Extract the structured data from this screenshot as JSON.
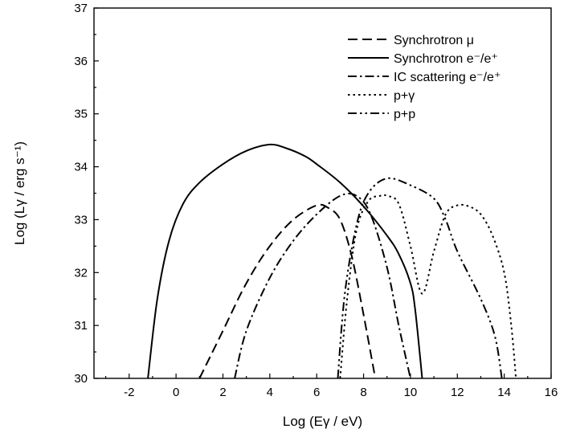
{
  "chart_data": {
    "type": "line",
    "title": "",
    "xlabel": "Log (Eγ / eV)",
    "ylabel": "Log (Lγ / erg s⁻¹)",
    "xlim": [
      -3.5,
      16
    ],
    "ylim": [
      30,
      37
    ],
    "x_ticks": [
      -2,
      0,
      2,
      4,
      6,
      8,
      10,
      12,
      14,
      16
    ],
    "x_tick_labels": [
      "-2",
      "0",
      "2",
      "4",
      "6",
      "8",
      "10",
      "12",
      "14",
      "16"
    ],
    "y_ticks": [
      30,
      31,
      32,
      33,
      34,
      35,
      36,
      37
    ],
    "y_tick_labels": [
      "30",
      "31",
      "32",
      "33",
      "34",
      "35",
      "36",
      "37"
    ],
    "grid": false,
    "legend_position": "top-right",
    "series": [
      {
        "name": "Synchrotron μ",
        "dash": "dashed",
        "points": [
          [
            1.0,
            30.0
          ],
          [
            2.0,
            30.9
          ],
          [
            3.0,
            31.8
          ],
          [
            4.0,
            32.5
          ],
          [
            5.0,
            33.0
          ],
          [
            6.0,
            33.27
          ],
          [
            6.5,
            33.22
          ],
          [
            7.0,
            33.0
          ],
          [
            7.5,
            32.3
          ],
          [
            8.0,
            31.2
          ],
          [
            8.5,
            30.0
          ]
        ]
      },
      {
        "name": "Synchrotron e⁻/e⁺",
        "dash": "solid",
        "points": [
          [
            -1.2,
            30.0
          ],
          [
            -0.8,
            31.5
          ],
          [
            -0.3,
            32.6
          ],
          [
            0.3,
            33.3
          ],
          [
            1.0,
            33.7
          ],
          [
            2.0,
            34.05
          ],
          [
            3.0,
            34.3
          ],
          [
            4.0,
            34.42
          ],
          [
            4.7,
            34.35
          ],
          [
            5.5,
            34.2
          ],
          [
            6.0,
            34.05
          ],
          [
            7.0,
            33.7
          ],
          [
            8.0,
            33.25
          ],
          [
            9.0,
            32.7
          ],
          [
            9.5,
            32.35
          ],
          [
            10.0,
            31.8
          ],
          [
            10.2,
            31.3
          ],
          [
            10.5,
            30.0
          ]
        ]
      },
      {
        "name": "IC scattering e⁻/e⁺",
        "dash": "dashdot",
        "points": [
          [
            2.5,
            30.0
          ],
          [
            3.0,
            30.9
          ],
          [
            4.0,
            31.9
          ],
          [
            5.0,
            32.6
          ],
          [
            6.0,
            33.1
          ],
          [
            7.0,
            33.45
          ],
          [
            7.7,
            33.45
          ],
          [
            8.3,
            33.1
          ],
          [
            9.0,
            32.1
          ],
          [
            9.5,
            31.0
          ],
          [
            10.0,
            30.0
          ]
        ]
      },
      {
        "name": "p+γ",
        "dash": "dotted",
        "points": [
          [
            7.0,
            30.0
          ],
          [
            7.3,
            31.5
          ],
          [
            7.7,
            32.8
          ],
          [
            8.2,
            33.35
          ],
          [
            8.7,
            33.45
          ],
          [
            9.0,
            33.45
          ],
          [
            9.5,
            33.3
          ],
          [
            10.0,
            32.5
          ],
          [
            10.5,
            31.6
          ],
          [
            11.0,
            32.4
          ],
          [
            11.5,
            33.1
          ],
          [
            12.0,
            33.27
          ],
          [
            12.5,
            33.25
          ],
          [
            13.0,
            33.1
          ],
          [
            13.5,
            32.7
          ],
          [
            14.0,
            32.0
          ],
          [
            14.3,
            31.0
          ],
          [
            14.5,
            30.0
          ]
        ]
      },
      {
        "name": "p+p",
        "dash": "dashdotdot",
        "points": [
          [
            6.9,
            30.0
          ],
          [
            7.2,
            31.6
          ],
          [
            7.7,
            32.9
          ],
          [
            8.2,
            33.5
          ],
          [
            9.0,
            33.78
          ],
          [
            10.0,
            33.65
          ],
          [
            11.0,
            33.4
          ],
          [
            11.5,
            33.0
          ],
          [
            12.0,
            32.4
          ],
          [
            13.0,
            31.5
          ],
          [
            13.6,
            30.8
          ],
          [
            13.9,
            30.0
          ]
        ]
      }
    ]
  }
}
